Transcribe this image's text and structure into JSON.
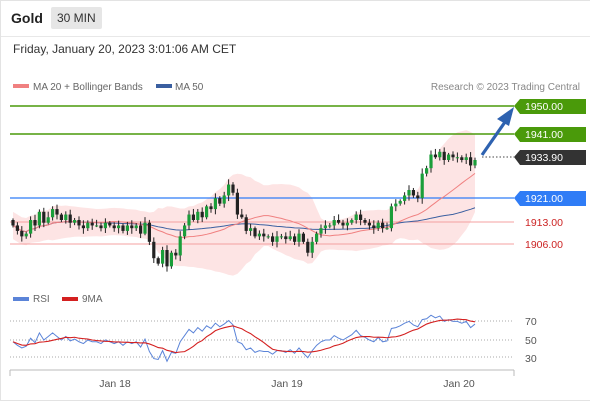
{
  "header": {
    "symbol": "Gold",
    "timeframe": "30 MIN",
    "datetime": "Friday, January 20, 2023 3:01:06 AM CET"
  },
  "legend": {
    "ma20": "MA 20 + Bollinger Bands",
    "ma50": "MA 50",
    "rsi": "RSI",
    "ma9": "9MA"
  },
  "copyright": "Research © 2023 Trading Central",
  "colors": {
    "green": "#4a9a0a",
    "blue": "#2f7cf6",
    "red": "#cc2222",
    "dark": "#333333",
    "ma20": "#f08080",
    "ma50": "#3a5fa0",
    "band": "#fde4e4",
    "rsi": "#5b84d8",
    "ma9": "#d42020",
    "arrow": "#2e62b0"
  },
  "chart_data": {
    "type": "candlestick",
    "instrument": "Gold",
    "interval": "30 MIN",
    "price_range": [
      1890,
      1956
    ],
    "x_ticks": [
      "Jan 18",
      "Jan 19",
      "Jan 20"
    ],
    "levels": [
      {
        "value": 1950.0,
        "label": "1950.00",
        "style": "resistance-green"
      },
      {
        "value": 1941.0,
        "label": "1941.00",
        "style": "resistance-green"
      },
      {
        "value": 1933.9,
        "label": "1933.90",
        "style": "last-price"
      },
      {
        "value": 1921.0,
        "label": "1921.00",
        "style": "pivot-blue"
      },
      {
        "value": 1913.0,
        "label": "1913.00",
        "style": "support-red"
      },
      {
        "value": 1906.0,
        "label": "1906.00",
        "style": "support-red"
      }
    ],
    "target_arrow": {
      "from": 1933.9,
      "to": 1950.0
    },
    "closes": [
      1910,
      1908,
      1906,
      1907,
      1912,
      1910,
      1915,
      1911,
      1913,
      1916,
      1914,
      1912,
      1914,
      1911,
      1912,
      1910,
      1909,
      1911,
      1910,
      1910,
      1909,
      1911,
      1910,
      1909,
      1910,
      1908,
      1910,
      1909,
      1910,
      1907,
      1911,
      1904,
      1898,
      1896,
      1901,
      1895,
      1900,
      1899,
      1906,
      1910,
      1914,
      1912,
      1915,
      1913,
      1917,
      1916,
      1920,
      1918,
      1921,
      1925,
      1922,
      1914,
      1913,
      1908,
      1909,
      1906,
      1907,
      1906,
      1906,
      1904,
      1906,
      1906,
      1905,
      1906,
      1904,
      1907,
      1904,
      1900,
      1904,
      1907,
      1909,
      1910,
      1910,
      1912,
      1911,
      1910,
      1911,
      1912,
      1914,
      1912,
      1911,
      1910,
      1909,
      1911,
      1909,
      1909,
      1917,
      1918,
      1919,
      1921,
      1923,
      1921,
      1920,
      1929,
      1931,
      1936,
      1935,
      1937,
      1934,
      1936,
      1935,
      1935,
      1934,
      1935,
      1932,
      1934
    ],
    "rsi": {
      "levels": [
        70,
        50,
        30
      ],
      "range": [
        15,
        85
      ],
      "values": [
        48,
        44,
        41,
        43,
        52,
        47,
        58,
        50,
        54,
        58,
        54,
        50,
        54,
        49,
        51,
        48,
        46,
        50,
        48,
        48,
        46,
        50,
        48,
        46,
        48,
        44,
        48,
        46,
        48,
        42,
        51,
        37,
        29,
        28,
        38,
        26,
        36,
        35,
        48,
        55,
        62,
        58,
        64,
        60,
        66,
        63,
        69,
        65,
        68,
        72,
        67,
        48,
        46,
        39,
        41,
        36,
        38,
        37,
        37,
        34,
        38,
        38,
        36,
        39,
        35,
        41,
        35,
        30,
        38,
        44,
        48,
        50,
        50,
        55,
        52,
        50,
        53,
        56,
        61,
        55,
        53,
        50,
        48,
        53,
        48,
        49,
        63,
        64,
        66,
        69,
        71,
        67,
        65,
        73,
        74,
        78,
        75,
        77,
        71,
        73,
        71,
        71,
        69,
        71,
        64,
        68
      ]
    }
  }
}
